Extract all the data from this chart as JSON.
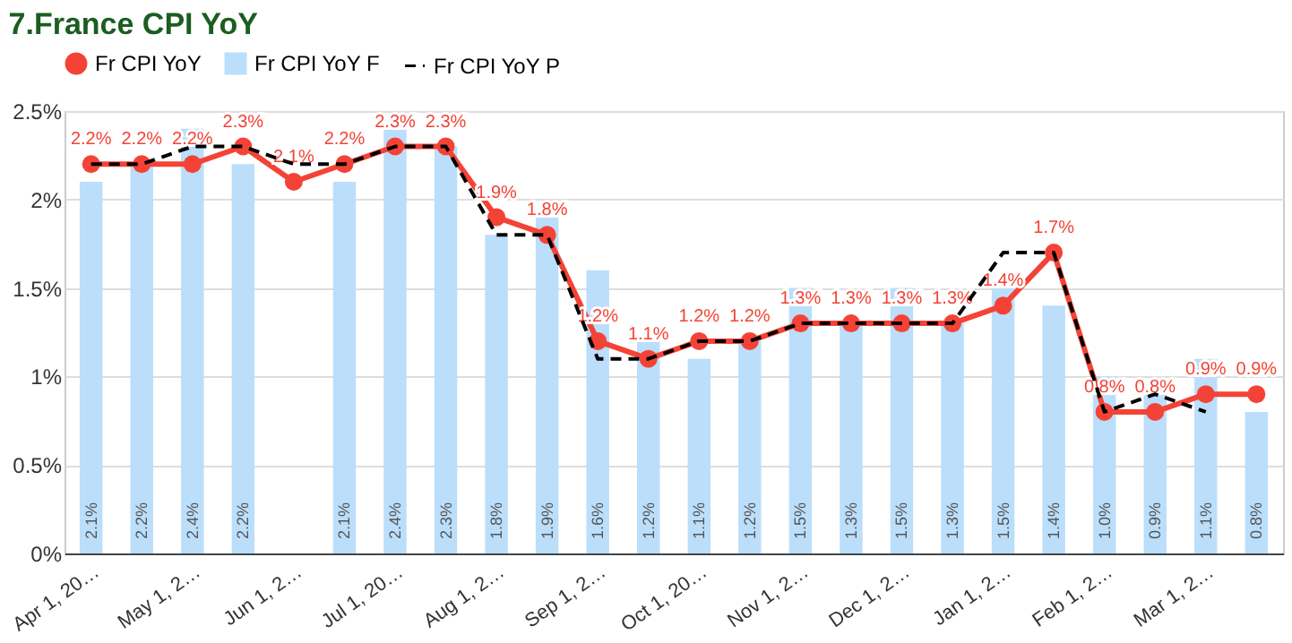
{
  "chart_data": {
    "type": "line",
    "title": "7.France CPI YoY",
    "categories": [
      "Apr 1, 20…",
      null,
      "May 1, 2…",
      null,
      "Jun 1, 2…",
      null,
      "Jul 1, 20…",
      null,
      "Aug 1, 2…",
      null,
      "Sep 1, 2…",
      null,
      "Oct 1, 20…",
      null,
      "Nov 1, 2…",
      null,
      "Dec 1, 2…",
      null,
      "Jan 1, 2…",
      null,
      "Feb 1, 2…",
      null,
      "Mar 1, 2…",
      null
    ],
    "series": [
      {
        "name": "Fr CPI YoY",
        "color": "#f44336",
        "marker": "circle",
        "line_style": "solid",
        "values": [
          2.2,
          2.2,
          2.2,
          2.3,
          2.1,
          2.2,
          2.3,
          2.3,
          1.9,
          1.8,
          1.2,
          1.1,
          1.2,
          1.2,
          1.3,
          1.3,
          1.3,
          1.3,
          1.4,
          1.7,
          0.8,
          0.8,
          0.9,
          0.9
        ],
        "value_labels": [
          "2.2%",
          "2.2%",
          "2.2%",
          "2.3%",
          "2.1%",
          "2.2%",
          "2.3%",
          "2.3%",
          "1.9%",
          "1.8%",
          "1.2%",
          "1.1%",
          "1.2%",
          "1.2%",
          "1.3%",
          "1.3%",
          "1.3%",
          "1.3%",
          "1.4%",
          "1.7%",
          "0.8%",
          "0.8%",
          "0.9%",
          "0.9%"
        ]
      },
      {
        "name": "Fr CPI YoY F",
        "type": "bar",
        "color": "#bbdefb",
        "values": [
          2.1,
          2.2,
          2.4,
          2.2,
          null,
          2.1,
          2.4,
          2.3,
          1.8,
          1.9,
          1.6,
          1.2,
          1.1,
          1.2,
          1.5,
          1.3,
          1.5,
          1.3,
          1.5,
          1.4,
          1.0,
          0.9,
          1.1,
          0.8
        ],
        "value_labels": [
          "2.1%",
          "2.2%",
          "2.4%",
          "2.2%",
          null,
          "2.1%",
          "2.4%",
          "2.3%",
          "1.8%",
          "1.9%",
          "1.6%",
          "1.2%",
          "1.1%",
          "1.2%",
          "1.5%",
          "1.3%",
          "1.5%",
          "1.3%",
          "1.5%",
          "1.4%",
          "1.0%",
          "0.9%",
          "1.1%",
          "0.8%"
        ]
      },
      {
        "name": "Fr CPI YoY P",
        "color": "#000000",
        "line_style": "dashed",
        "values": [
          2.2,
          2.2,
          2.3,
          2.3,
          2.2,
          2.2,
          2.3,
          2.3,
          1.8,
          1.8,
          1.1,
          1.1,
          1.2,
          1.2,
          1.3,
          1.3,
          1.3,
          1.3,
          1.7,
          1.7,
          0.8,
          0.9,
          0.8,
          null
        ]
      }
    ],
    "ylim": [
      0,
      2.5
    ],
    "yticks": [
      {
        "value": 0,
        "label": "0%"
      },
      {
        "value": 0.5,
        "label": "0.5%"
      },
      {
        "value": 1,
        "label": "1%"
      },
      {
        "value": 1.5,
        "label": "1.5%"
      },
      {
        "value": 2,
        "label": "2%"
      },
      {
        "value": 2.5,
        "label": "2.5%"
      }
    ],
    "grid": "y",
    "legend": "top"
  }
}
